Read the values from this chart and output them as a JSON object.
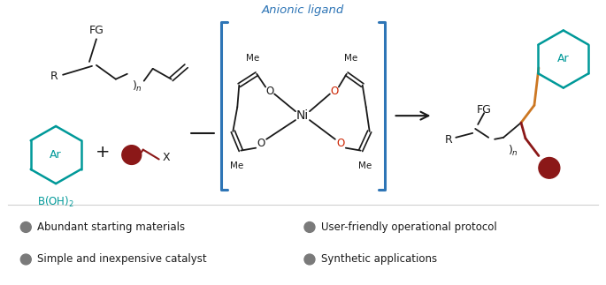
{
  "figsize": [
    6.85,
    3.23
  ],
  "dpi": 100,
  "bg_color": "#ffffff",
  "teal_color": "#009999",
  "dark_red_color": "#8B1818",
  "orange_color": "#CC7722",
  "blue_color": "#2E75B6",
  "bullet_color": "#7a7a7a",
  "bullet_items_left": [
    "Abundant starting materials",
    "Simple and inexpensive catalyst"
  ],
  "bullet_items_right": [
    "User-friendly operational protocol",
    "Synthetic applications"
  ],
  "anionic_label": "Anionic ligand"
}
